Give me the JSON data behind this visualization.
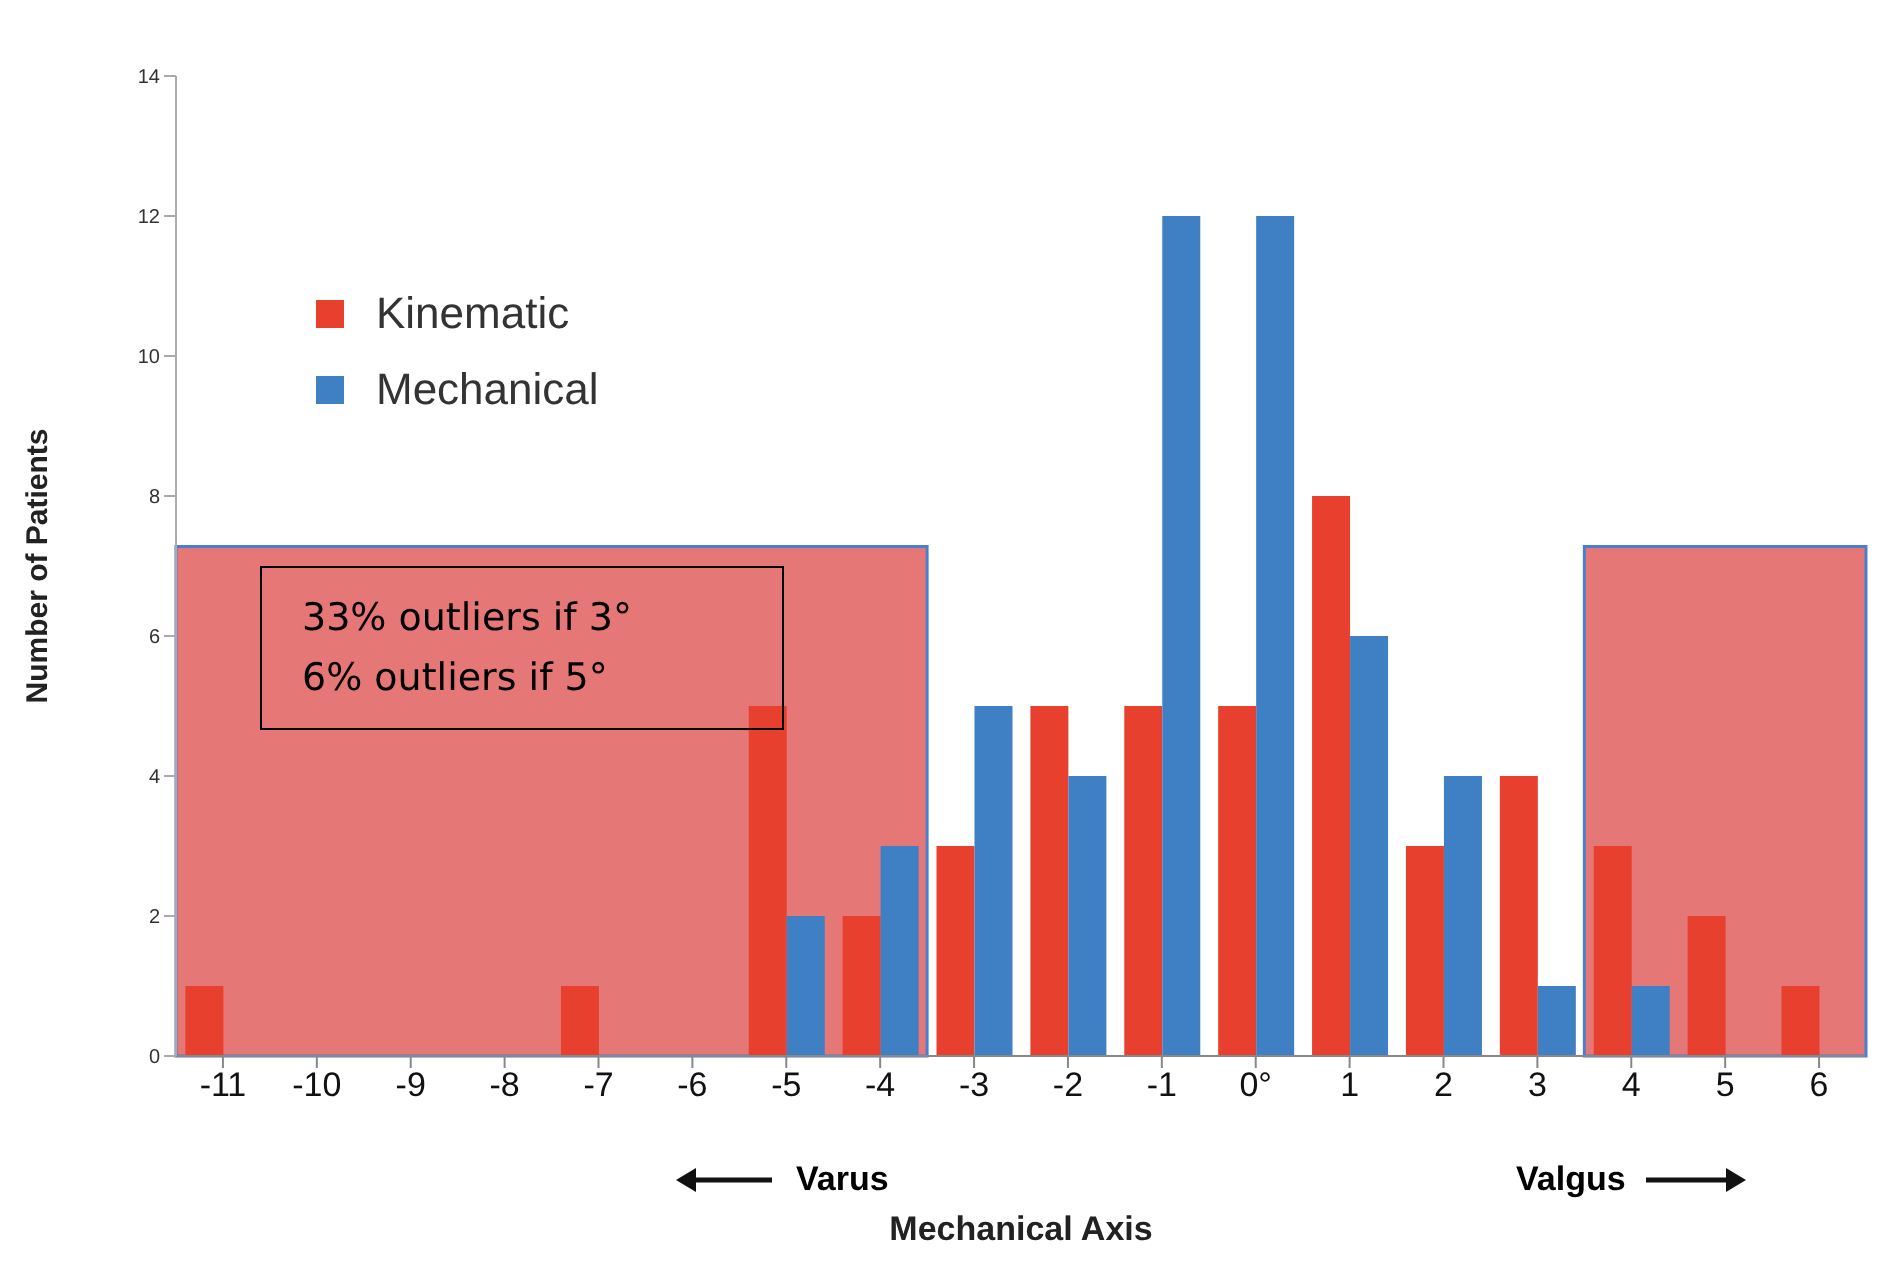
{
  "chart_data": {
    "type": "bar",
    "xlabel": "Mechanical Axis",
    "ylabel": "Number of Patients",
    "categories": [
      "-11",
      "-10",
      "-9",
      "-8",
      "-7",
      "-6",
      "-5",
      "-4",
      "-3",
      "-2",
      "-1",
      "0°",
      "1",
      "2",
      "3",
      "4",
      "5",
      "6"
    ],
    "series": [
      {
        "name": "Kinematic",
        "color": "#e8402e",
        "values": [
          1,
          0,
          0,
          0,
          1,
          0,
          5,
          2,
          3,
          5,
          5,
          5,
          8,
          3,
          4,
          3,
          2,
          1
        ]
      },
      {
        "name": "Mechanical",
        "color": "#3f7fc4",
        "values": [
          0,
          0,
          0,
          0,
          0,
          0,
          2,
          3,
          5,
          4,
          12,
          12,
          6,
          4,
          1,
          1,
          0,
          0
        ]
      }
    ],
    "ylim": [
      0,
      14
    ],
    "yticks": [
      0,
      2,
      4,
      6,
      8,
      10,
      12,
      14
    ],
    "grid": false,
    "legend": "top left",
    "bands": [
      {
        "axis": "x",
        "from": "-11",
        "to": "-4",
        "color": "#e05555"
      },
      {
        "axis": "x",
        "from": "4",
        "to": "6",
        "color": "#e05555"
      }
    ],
    "annotations": [
      "33% outliers if 3°",
      "6% outliers if 5°",
      "Varus",
      "Valgus"
    ]
  }
}
